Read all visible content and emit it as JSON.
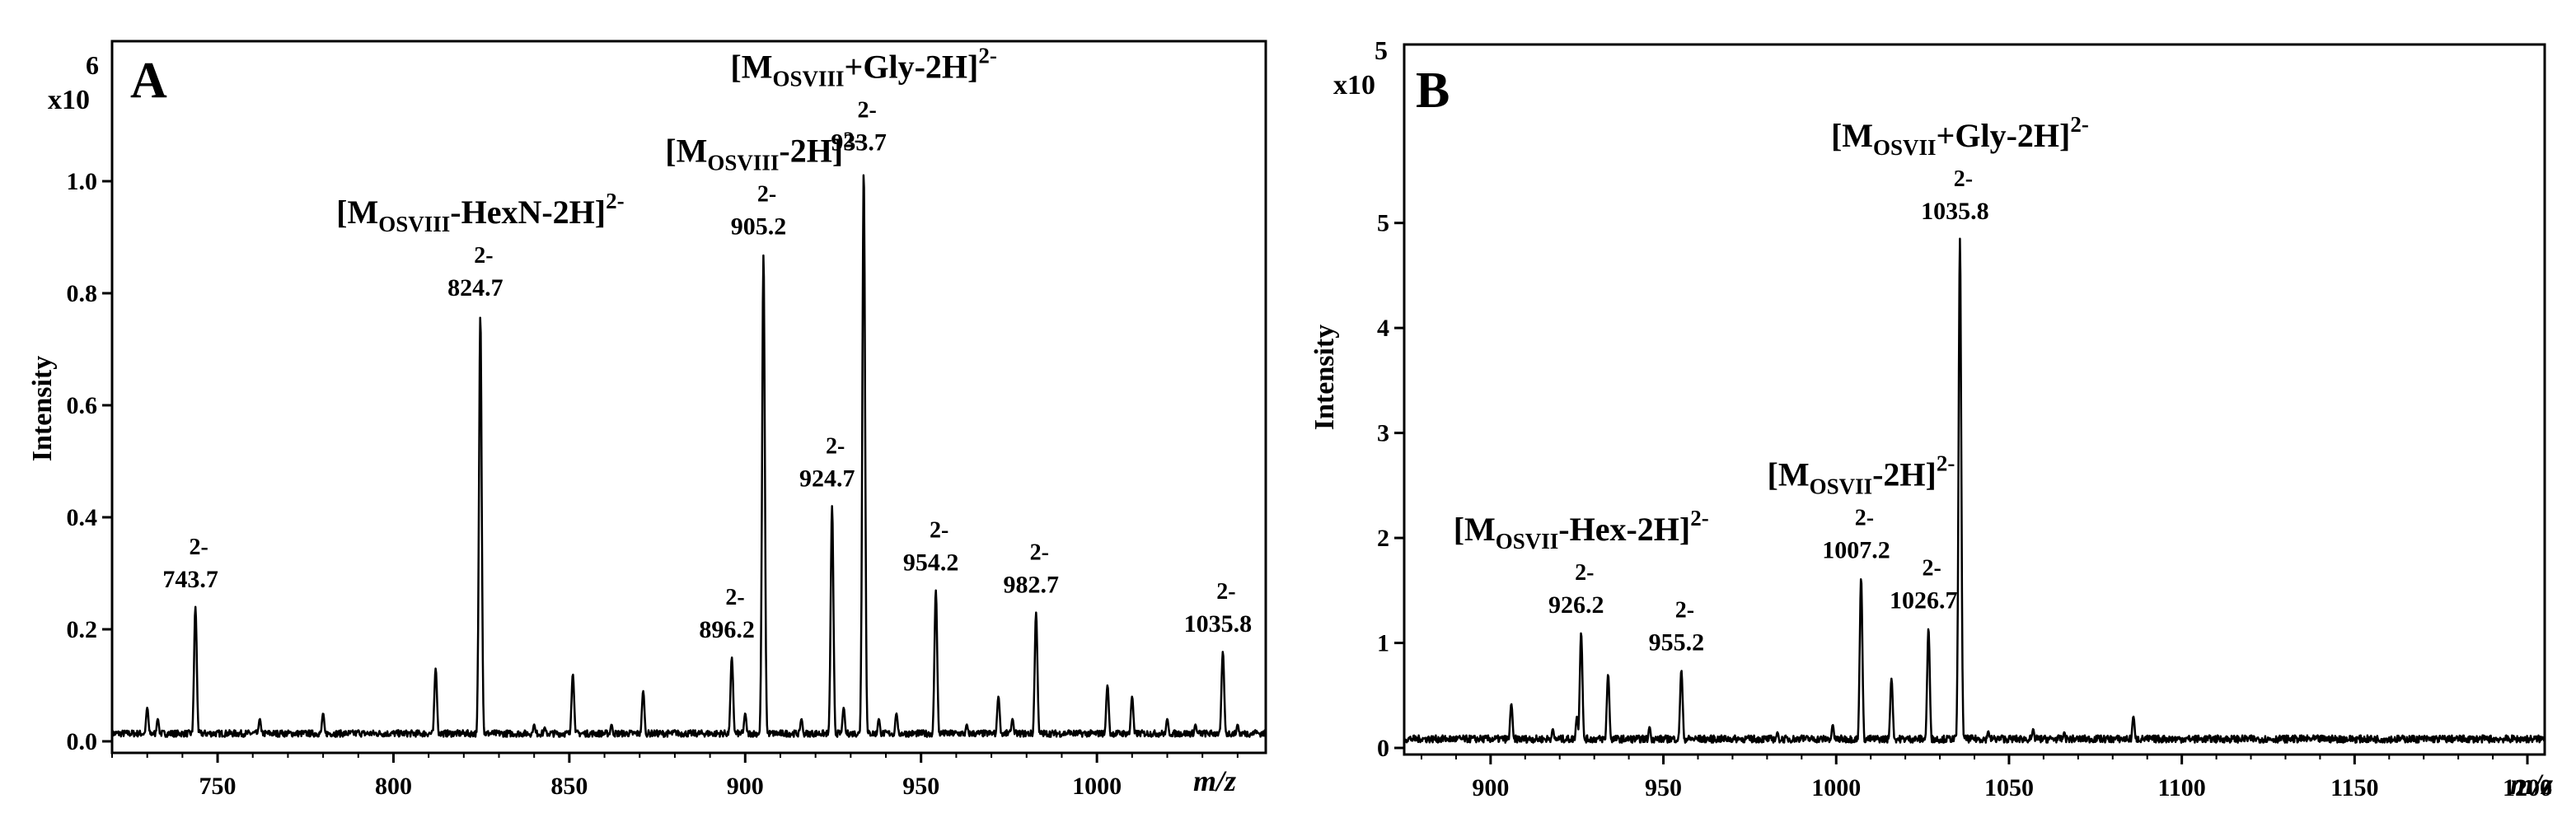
{
  "chart_data": [
    {
      "panel": "A",
      "type": "line",
      "exponent_base": "x10",
      "exponent_power": "6",
      "ylabel": "Intensity",
      "xlabel": "m/z",
      "xlim": [
        720,
        1048
      ],
      "ylim": [
        0,
        1.25
      ],
      "x_ticks": [
        "750",
        "800",
        "850",
        "900",
        "950",
        "1000"
      ],
      "x_tick_values": [
        750,
        800,
        850,
        900,
        950,
        1000
      ],
      "y_ticks": [
        "0.0",
        "0.2",
        "0.4",
        "0.6",
        "0.8",
        "1.0"
      ],
      "y_tick_values": [
        0.0,
        0.2,
        0.4,
        0.6,
        0.8,
        1.0
      ],
      "peaks": [
        {
          "x": 730,
          "y": 0.06
        },
        {
          "x": 733,
          "y": 0.04
        },
        {
          "x": 743.7,
          "y": 0.24
        },
        {
          "x": 762,
          "y": 0.04
        },
        {
          "x": 768,
          "y": 0.015
        },
        {
          "x": 780,
          "y": 0.05
        },
        {
          "x": 790,
          "y": 0.02
        },
        {
          "x": 812,
          "y": 0.13
        },
        {
          "x": 824.7,
          "y": 0.76
        },
        {
          "x": 840,
          "y": 0.03
        },
        {
          "x": 843,
          "y": 0.025
        },
        {
          "x": 851,
          "y": 0.12
        },
        {
          "x": 862,
          "y": 0.03
        },
        {
          "x": 871,
          "y": 0.09
        },
        {
          "x": 880,
          "y": 0.02
        },
        {
          "x": 896.2,
          "y": 0.15
        },
        {
          "x": 900,
          "y": 0.05
        },
        {
          "x": 905.2,
          "y": 0.87
        },
        {
          "x": 916,
          "y": 0.04
        },
        {
          "x": 924.7,
          "y": 0.42
        },
        {
          "x": 928,
          "y": 0.06
        },
        {
          "x": 933.7,
          "y": 1.02
        },
        {
          "x": 938,
          "y": 0.04
        },
        {
          "x": 943,
          "y": 0.05
        },
        {
          "x": 954.2,
          "y": 0.27
        },
        {
          "x": 963,
          "y": 0.03
        },
        {
          "x": 972,
          "y": 0.08
        },
        {
          "x": 976,
          "y": 0.04
        },
        {
          "x": 982.7,
          "y": 0.23
        },
        {
          "x": 992,
          "y": 0.02
        },
        {
          "x": 1003,
          "y": 0.1
        },
        {
          "x": 1010,
          "y": 0.08
        },
        {
          "x": 1020,
          "y": 0.04
        },
        {
          "x": 1028,
          "y": 0.03
        },
        {
          "x": 1035.8,
          "y": 0.16
        },
        {
          "x": 1040,
          "y": 0.03
        },
        {
          "x": 1045,
          "y": 0.02
        }
      ],
      "peak_labels": [
        {
          "x": 743.7,
          "y": 0.24,
          "charge": "2-",
          "value": "743.7"
        },
        {
          "x": 824.7,
          "y": 0.76,
          "charge": "2-",
          "value": "824.7"
        },
        {
          "x": 896.2,
          "y": 0.15,
          "charge": "2-",
          "value": "896.2"
        },
        {
          "x": 905.2,
          "y": 0.87,
          "charge": "2-",
          "value": "905.2"
        },
        {
          "x": 924.7,
          "y": 0.42,
          "charge": "2-",
          "value": "924.7"
        },
        {
          "x": 933.7,
          "y": 1.02,
          "charge": "2-",
          "value": "933.7"
        },
        {
          "x": 954.2,
          "y": 0.27,
          "charge": "2-",
          "value": "954.2"
        },
        {
          "x": 982.7,
          "y": 0.23,
          "charge": "2-",
          "value": "982.7"
        },
        {
          "x": 1035.8,
          "y": 0.16,
          "charge": "2-",
          "value": "1035.8"
        }
      ],
      "annotations": [
        {
          "x": 933.7,
          "y": 1.02,
          "prefix": "[M",
          "sub": "OSVIII",
          "suffix": "+Gly-2H]",
          "sup": "2-"
        },
        {
          "x": 905.2,
          "y": 0.87,
          "prefix": "[M",
          "sub": "OSVIII",
          "suffix": "-2H]",
          "sup": "2-"
        },
        {
          "x": 824.7,
          "y": 0.76,
          "prefix": "[M",
          "sub": "OSVIII",
          "suffix": "-HexN-2H]",
          "sup": "2-"
        }
      ]
    },
    {
      "panel": "B",
      "type": "line",
      "exponent_base": "x10",
      "exponent_power": "5",
      "ylabel": "Intensity",
      "xlabel": "m/z",
      "xlim": [
        875,
        1205
      ],
      "ylim": [
        0,
        6.7
      ],
      "x_ticks": [
        "900",
        "950",
        "1000",
        "1050",
        "1100",
        "1150",
        "1200"
      ],
      "x_tick_values": [
        900,
        950,
        1000,
        1050,
        1100,
        1150,
        1200
      ],
      "y_ticks": [
        "0",
        "1",
        "2",
        "3",
        "4",
        "5"
      ],
      "y_tick_values": [
        0,
        1,
        2,
        3,
        4,
        5
      ],
      "peaks": [
        {
          "x": 880,
          "y": 0.08
        },
        {
          "x": 897,
          "y": 0.08
        },
        {
          "x": 906,
          "y": 0.42
        },
        {
          "x": 918,
          "y": 0.18
        },
        {
          "x": 925,
          "y": 0.3
        },
        {
          "x": 926.2,
          "y": 1.1
        },
        {
          "x": 934,
          "y": 0.7
        },
        {
          "x": 946,
          "y": 0.2
        },
        {
          "x": 955.2,
          "y": 0.74
        },
        {
          "x": 972,
          "y": 0.08
        },
        {
          "x": 983,
          "y": 0.15
        },
        {
          "x": 990,
          "y": 0.12
        },
        {
          "x": 999,
          "y": 0.22
        },
        {
          "x": 1007.2,
          "y": 1.62
        },
        {
          "x": 1016,
          "y": 0.66
        },
        {
          "x": 1026.7,
          "y": 1.14
        },
        {
          "x": 1035.8,
          "y": 4.85
        },
        {
          "x": 1044,
          "y": 0.16
        },
        {
          "x": 1048,
          "y": 0.12
        },
        {
          "x": 1057,
          "y": 0.18
        },
        {
          "x": 1066,
          "y": 0.15
        },
        {
          "x": 1076,
          "y": 0.1
        },
        {
          "x": 1086,
          "y": 0.3
        },
        {
          "x": 1095,
          "y": 0.08
        },
        {
          "x": 1128,
          "y": 0.04
        }
      ],
      "peak_labels": [
        {
          "x": 926.2,
          "y": 1.1,
          "charge": "2-",
          "value": "926.2"
        },
        {
          "x": 955.2,
          "y": 0.74,
          "charge": "2-",
          "value": "955.2"
        },
        {
          "x": 1007.2,
          "y": 1.62,
          "charge": "2-",
          "value": "1007.2"
        },
        {
          "x": 1026.7,
          "y": 1.14,
          "charge": "2-",
          "value": "1026.7"
        },
        {
          "x": 1035.8,
          "y": 4.85,
          "charge": "2-",
          "value": "1035.8"
        }
      ],
      "annotations": [
        {
          "x": 1035.8,
          "y": 4.85,
          "prefix": "[M",
          "sub": "OSVII",
          "suffix": "+Gly-2H]",
          "sup": "2-"
        },
        {
          "x": 1007.2,
          "y": 1.62,
          "prefix": "[M",
          "sub": "OSVII",
          "suffix": "-2H]",
          "sup": "2-"
        },
        {
          "x": 926.2,
          "y": 1.1,
          "prefix": "[M",
          "sub": "OSVII",
          "suffix": "-Hex-2H]",
          "sup": "2-"
        }
      ]
    }
  ]
}
